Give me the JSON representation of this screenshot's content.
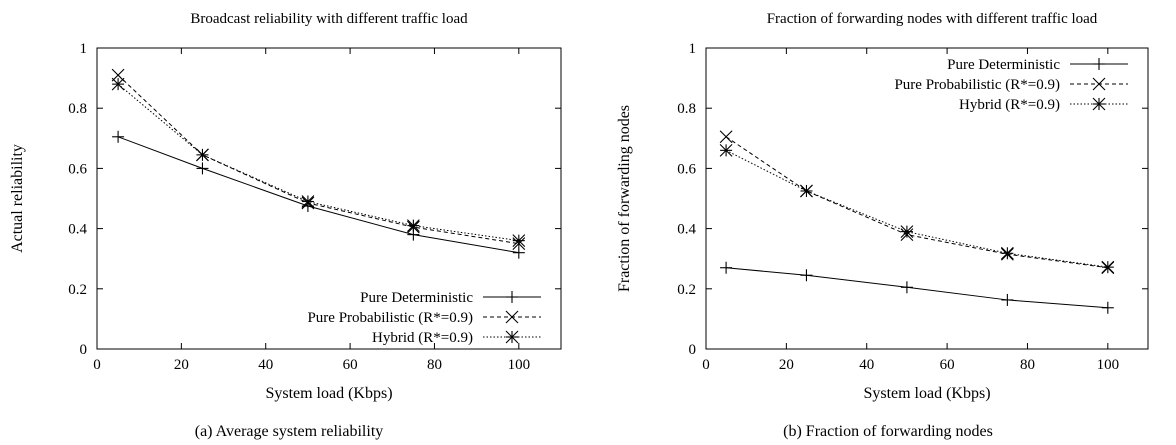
{
  "chart_data": [
    {
      "type": "line",
      "title": "Broadcast reliability with different traffic load",
      "caption": "(a) Average system reliability",
      "xlabel": "System load (Kbps)",
      "ylabel": "Actual reliability",
      "xlim": [
        0,
        110
      ],
      "ylim": [
        0,
        1
      ],
      "xticks": [
        0,
        20,
        40,
        60,
        80,
        100
      ],
      "yticks": [
        0,
        0.2,
        0.4,
        0.6,
        0.8,
        1
      ],
      "xtick_labels": [
        "0",
        "20",
        "40",
        "60",
        "80",
        "100"
      ],
      "ytick_labels": [
        "0",
        "0.2",
        "0.4",
        "0.6",
        "0.8",
        "1"
      ],
      "legend_position": "bottom-right",
      "grid": false,
      "x": [
        5,
        25,
        50,
        75,
        100
      ],
      "series": [
        {
          "name": "Pure Deterministic",
          "values": [
            0.705,
            0.6,
            0.475,
            0.38,
            0.32
          ],
          "marker": "plus",
          "dash": "solid"
        },
        {
          "name": "Pure Probabilistic (R*=0.9)",
          "values": [
            0.91,
            0.645,
            0.485,
            0.405,
            0.35
          ],
          "marker": "cross",
          "dash": "dashed"
        },
        {
          "name": "Hybrid (R*=0.9)",
          "values": [
            0.88,
            0.645,
            0.49,
            0.41,
            0.36
          ],
          "marker": "star",
          "dash": "dotted"
        }
      ]
    },
    {
      "type": "line",
      "title": "Fraction of forwarding nodes with different traffic load",
      "caption": "(b) Fraction of forwarding nodes",
      "xlabel": "System load (Kbps)",
      "ylabel": "Fraction of forwarding nodes",
      "xlim": [
        0,
        110
      ],
      "ylim": [
        0,
        1
      ],
      "xticks": [
        0,
        20,
        40,
        60,
        80,
        100
      ],
      "yticks": [
        0,
        0.2,
        0.4,
        0.6,
        0.8,
        1
      ],
      "xtick_labels": [
        "0",
        "20",
        "40",
        "60",
        "80",
        "100"
      ],
      "ytick_labels": [
        "0",
        "0.2",
        "0.4",
        "0.6",
        "0.8",
        "1"
      ],
      "legend_position": "top-right",
      "grid": false,
      "x": [
        5,
        25,
        50,
        75,
        100
      ],
      "series": [
        {
          "name": "Pure Deterministic",
          "values": [
            0.27,
            0.245,
            0.205,
            0.163,
            0.137
          ],
          "marker": "plus",
          "dash": "solid"
        },
        {
          "name": "Pure Probabilistic (R*=0.9)",
          "values": [
            0.705,
            0.525,
            0.38,
            0.315,
            0.27
          ],
          "marker": "cross",
          "dash": "dashed"
        },
        {
          "name": "Hybrid (R*=0.9)",
          "values": [
            0.66,
            0.525,
            0.39,
            0.318,
            0.272
          ],
          "marker": "star",
          "dash": "dotted"
        }
      ]
    }
  ]
}
